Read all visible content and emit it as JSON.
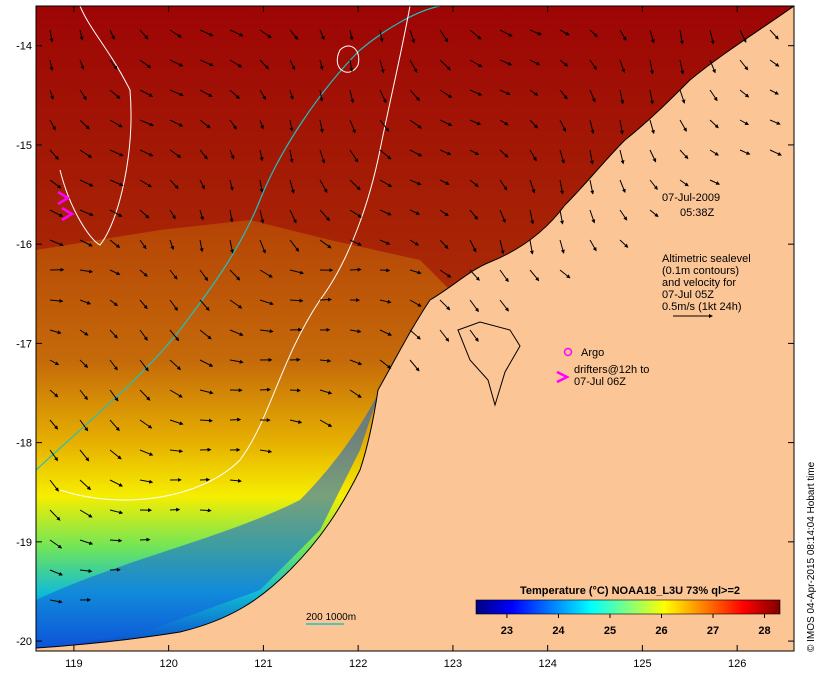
{
  "map": {
    "lon_ticks": [
      "119",
      "120",
      "121",
      "122",
      "123",
      "124",
      "125",
      "126"
    ],
    "lat_ticks": [
      "-14",
      "-15",
      "-16",
      "-17",
      "-18",
      "-19",
      "-20"
    ],
    "lon_range": [
      118.6,
      126.6
    ],
    "lat_range": [
      -20.1,
      -13.6
    ]
  },
  "annotations": {
    "date": "07-Jul-2009",
    "time": "05:38Z",
    "legend_lines": [
      "Altimetric sealevel",
      "(0.1m contours)",
      "and velocity for",
      "07-Jul 05Z",
      "0.5m/s (1kt 24h)"
    ],
    "argo_label": "Argo",
    "drifters_line1": "drifters@12h to",
    "drifters_line2": "07-Jul 06Z",
    "scale_label": "200  1000m"
  },
  "colorbar": {
    "title": "Temperature (°C) NOAA18_L3U 73% ql>=2",
    "ticks": [
      "23",
      "24",
      "25",
      "26",
      "27",
      "28"
    ],
    "range": [
      22.4,
      28.3
    ],
    "colors": [
      "#00007f",
      "#0000ff",
      "#007fff",
      "#00ffff",
      "#7fff7f",
      "#ffff00",
      "#ff7f00",
      "#ff0000",
      "#7f0000"
    ]
  },
  "credit": "© IMOS 04-Apr-2015 08:14:04 Hobart time",
  "colors": {
    "land": "#fbc596",
    "marker": "#ff00ff",
    "contour_200_1000": "#20c0c0",
    "sealevel_contour": "#ffffff"
  }
}
